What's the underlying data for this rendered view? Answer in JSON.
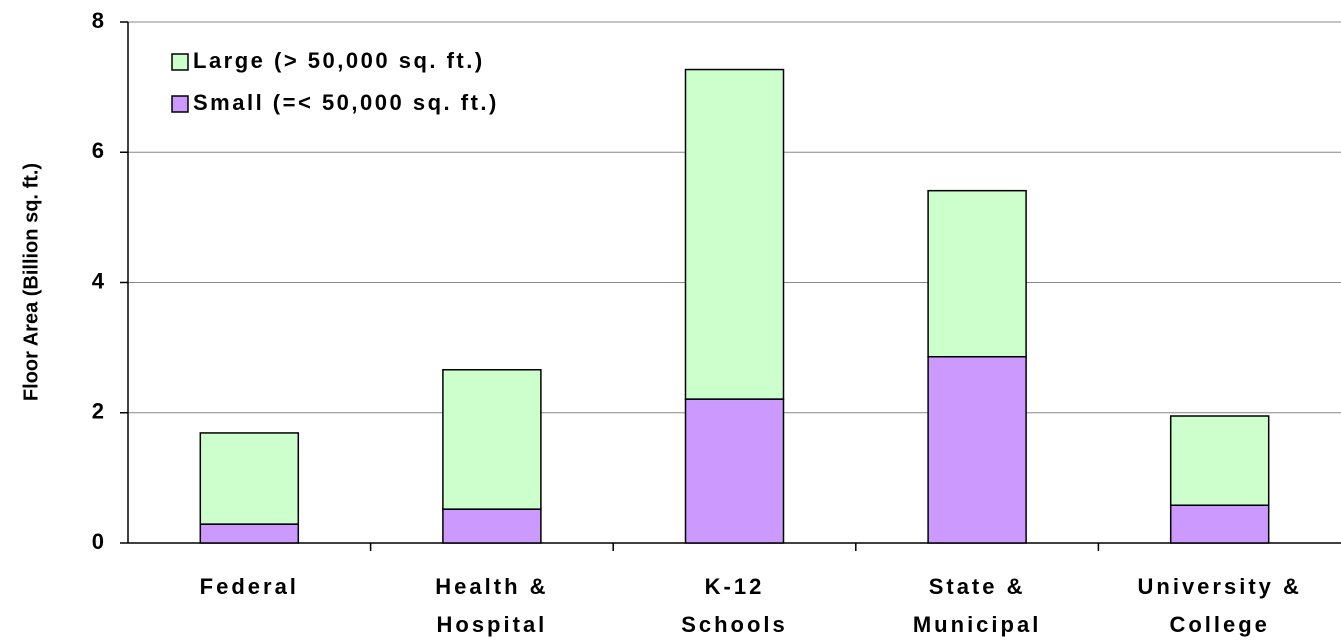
{
  "chart_data": {
    "type": "stacked_bar",
    "y_label": "Floor Area (Billion sq. ft.)",
    "categories": [
      [
        "Federal"
      ],
      [
        "Health &",
        "Hospital"
      ],
      [
        "K-12",
        "Schools"
      ],
      [
        "State &",
        "Municipal"
      ],
      [
        "University &",
        "College"
      ]
    ],
    "series": [
      {
        "name": "Small (=< 50,000 sq. ft.)",
        "color": "#cc99ff",
        "values": [
          0.29,
          0.52,
          2.21,
          2.86,
          0.58
        ]
      },
      {
        "name": "Large (> 50,000 sq. ft.)",
        "color": "#ccffcc",
        "values": [
          1.4,
          2.14,
          5.06,
          2.55,
          1.37
        ]
      }
    ],
    "ylim": [
      0,
      8
    ],
    "yticks": [
      0,
      2,
      4,
      6,
      8
    ],
    "grid": true,
    "legend": "upper left"
  }
}
